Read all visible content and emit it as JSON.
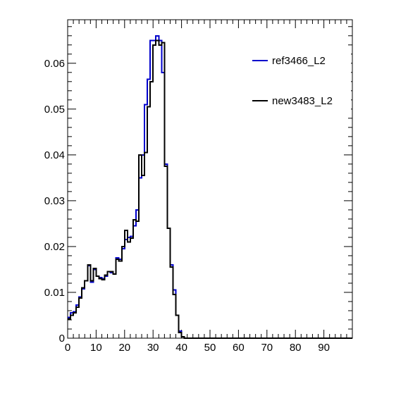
{
  "chart_data": {
    "type": "line",
    "title": "",
    "xlabel": "",
    "ylabel": "",
    "xlim": [
      0,
      100
    ],
    "ylim": [
      0,
      0.0695
    ],
    "bin_width": 1,
    "x_ticks": [
      0,
      10,
      20,
      30,
      40,
      50,
      60,
      70,
      80,
      90
    ],
    "y_ticks": [
      0,
      0.01,
      0.02,
      0.03,
      0.04,
      0.05,
      0.06
    ],
    "x_tick_labels": [
      "0",
      "10",
      "20",
      "30",
      "40",
      "50",
      "60",
      "70",
      "80",
      "90"
    ],
    "y_tick_labels": [
      "0",
      "0.01",
      "0.02",
      "0.03",
      "0.04",
      "0.05",
      "0.06"
    ],
    "legend_position": "top-right",
    "series": [
      {
        "name": "ref3466_L2",
        "color": "#0000cc",
        "values": [
          0.0045,
          0.0055,
          0.0058,
          0.0072,
          0.009,
          0.0108,
          0.0125,
          0.0158,
          0.0122,
          0.015,
          0.0135,
          0.0132,
          0.013,
          0.0135,
          0.0145,
          0.0143,
          0.014,
          0.0175,
          0.0172,
          0.0195,
          0.0215,
          0.022,
          0.0222,
          0.0245,
          0.028,
          0.035,
          0.04,
          0.051,
          0.0565,
          0.065,
          0.065,
          0.066,
          0.065,
          0.058,
          0.038,
          0.024,
          0.016,
          0.0105,
          0.005,
          0.0015,
          0.0003,
          0,
          0,
          0,
          0,
          0,
          0,
          0,
          0,
          0,
          0,
          0,
          0,
          0,
          0,
          0,
          0,
          0,
          0,
          0,
          0,
          0,
          0,
          0,
          0,
          0,
          0,
          0,
          0,
          0,
          0,
          0,
          0,
          0,
          0,
          0,
          0,
          0,
          0,
          0,
          0,
          0,
          0,
          0,
          0,
          0,
          0,
          0,
          0,
          0,
          0,
          0,
          0,
          0,
          0,
          0,
          0,
          0,
          0,
          0
        ]
      },
      {
        "name": "new3483_L2",
        "color": "#000000",
        "values": [
          0.0042,
          0.005,
          0.0055,
          0.0068,
          0.0088,
          0.011,
          0.0125,
          0.016,
          0.0125,
          0.0152,
          0.0135,
          0.013,
          0.0128,
          0.0138,
          0.0145,
          0.0145,
          0.014,
          0.0172,
          0.0168,
          0.02,
          0.0235,
          0.021,
          0.0218,
          0.0258,
          0.0255,
          0.04,
          0.0355,
          0.0405,
          0.0505,
          0.056,
          0.064,
          0.065,
          0.064,
          0.0645,
          0.0375,
          0.024,
          0.0155,
          0.0095,
          0.005,
          0.0012,
          0.0003,
          0,
          0,
          0,
          0,
          0,
          0,
          0,
          0,
          0,
          0,
          0,
          0,
          0,
          0,
          0,
          0,
          0,
          0,
          0,
          0,
          0,
          0,
          0,
          0,
          0,
          0,
          0,
          0,
          0,
          0,
          0,
          0,
          0,
          0,
          0,
          0,
          0,
          0,
          0,
          0,
          0,
          0,
          0,
          0,
          0,
          0,
          0,
          0,
          0,
          0,
          0,
          0,
          0,
          0,
          0,
          0,
          0,
          0,
          0
        ]
      }
    ]
  }
}
